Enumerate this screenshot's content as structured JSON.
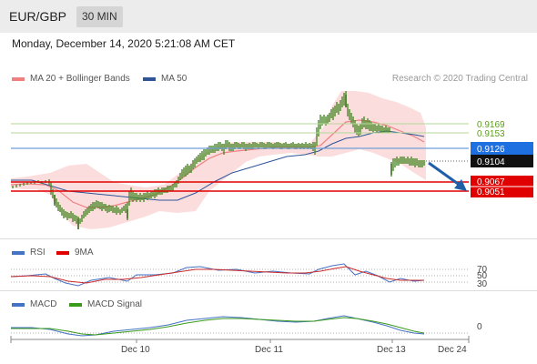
{
  "header": {
    "pair": "EUR/GBP",
    "timeframe": "30 MIN"
  },
  "datetime": "Monday, December 14, 2020 5:21:08 AM CET",
  "legend_main": [
    {
      "label": "MA 20 + Bollinger Bands",
      "color": "#f08080"
    },
    {
      "label": "MA 50",
      "color": "#2f5597"
    }
  ],
  "copyright": "Research © 2020 Trading Central",
  "price_levels": [
    {
      "label": "0.9169",
      "style": "green-text",
      "color": "#5a9e1c"
    },
    {
      "label": "0.9153",
      "style": "green-text",
      "color": "#5a9e1c"
    },
    {
      "label": "0.9126",
      "style": "box",
      "color": "#1e6fe0"
    },
    {
      "label": "0.9104",
      "style": "box",
      "color": "#111111"
    },
    {
      "label": "0.9067",
      "style": "box",
      "color": "#e00000"
    },
    {
      "label": "0.9051",
      "style": "box",
      "color": "#e00000"
    }
  ],
  "legend_rsi": [
    {
      "label": "RSI",
      "color": "#4472c4"
    },
    {
      "label": "9MA",
      "color": "#e00000"
    }
  ],
  "rsi_levels": [
    "70",
    "50",
    "30"
  ],
  "legend_macd": [
    {
      "label": "MACD",
      "color": "#4472c4"
    },
    {
      "label": "MACD Signal",
      "color": "#3a9a1a"
    }
  ],
  "macd_level": "0",
  "x_axis": [
    "Dec 10",
    "Dec 11",
    "Dec 13",
    "Dec 24"
  ]
}
